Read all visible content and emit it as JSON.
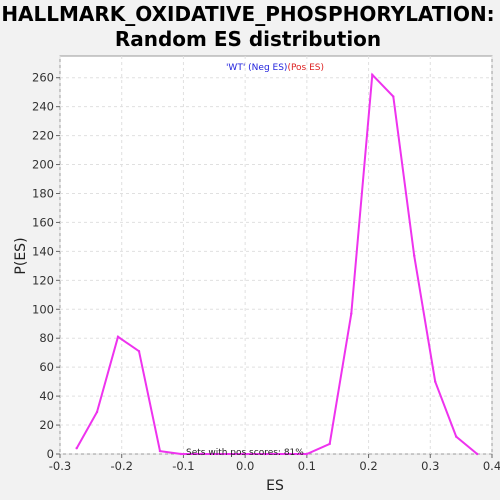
{
  "chart_data": {
    "type": "line",
    "title_line1": "HALLMARK_OXIDATIVE_PHOSPHORYLATION:",
    "title_line2": "Random ES distribution",
    "xlabel": "ES",
    "ylabel": "P(ES)",
    "xlim": [
      -0.3,
      0.4
    ],
    "ylim": [
      0,
      275
    ],
    "xticks": [
      -0.3,
      -0.2,
      -0.1,
      0.0,
      0.1,
      0.2,
      0.3,
      0.4
    ],
    "xtick_labels": [
      "-0.3",
      "-0.2",
      "-0.1",
      "0.0",
      "0.1",
      "0.2",
      "0.3",
      "0.4"
    ],
    "yticks": [
      0,
      20,
      40,
      60,
      80,
      100,
      120,
      140,
      160,
      180,
      200,
      220,
      240,
      260
    ],
    "yticks_labels": [
      "0",
      "20",
      "40",
      "60",
      "80",
      "100",
      "120",
      "140",
      "160",
      "180",
      "200",
      "220",
      "240",
      "260"
    ],
    "grid": true,
    "legend": {
      "part1": "'WT' (Neg ES)",
      "part2": "(Pos ES)",
      "color1": "#2222dd",
      "color2": "#dd2222",
      "placement": "top-center"
    },
    "annotation": "Sets with pos scores: 81%",
    "line_color": "#ee33ee",
    "series": [
      {
        "x": [
          -0.273,
          -0.24,
          -0.206,
          -0.172,
          -0.138,
          -0.104,
          -0.07,
          -0.036,
          -0.002,
          0.032,
          0.066,
          0.1,
          0.137,
          0.172,
          0.206,
          0.24,
          0.274,
          0.308,
          0.342,
          0.376
        ],
        "y": [
          4,
          29,
          81,
          71,
          2,
          0,
          0,
          0,
          0,
          0,
          0,
          0,
          7,
          97,
          262,
          247,
          137,
          50,
          12,
          0
        ]
      }
    ]
  }
}
